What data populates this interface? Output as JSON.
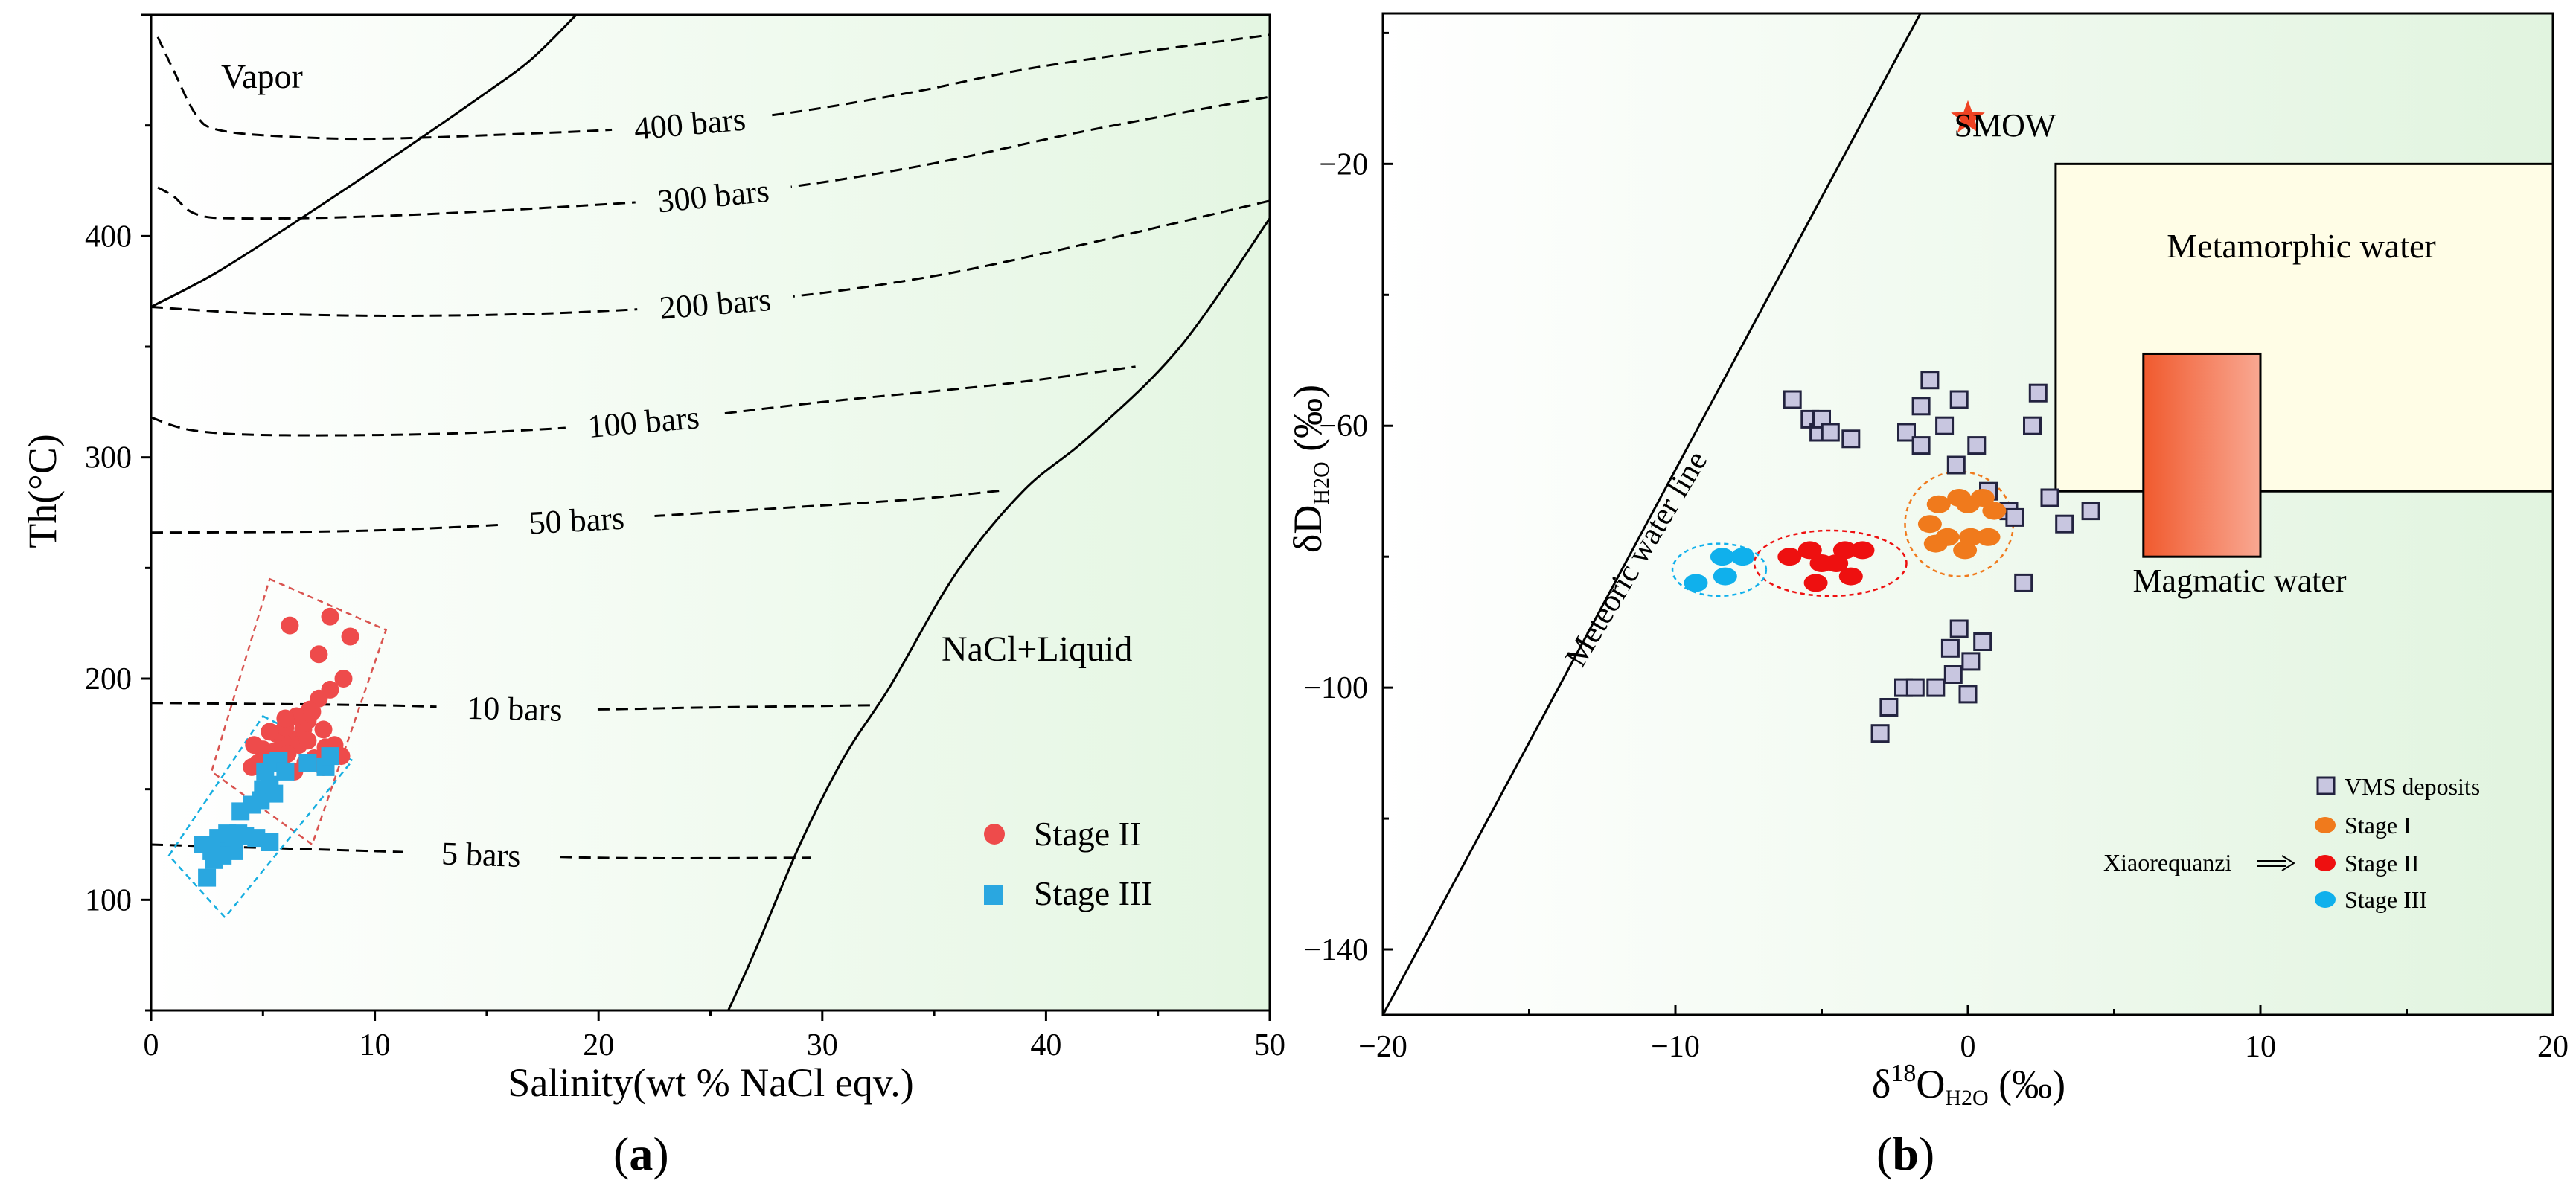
{
  "panels": {
    "a": {
      "label": "a"
    },
    "b": {
      "label": "b"
    }
  },
  "chart_data": [
    {
      "type": "scatter",
      "panel": "a",
      "xlabel": "Salinity(wt % NaCl eqv.)",
      "ylabel": "Th(°C)",
      "xlim": [
        0,
        50
      ],
      "ylim": [
        50,
        500
      ],
      "xticks": [
        0,
        10,
        20,
        30,
        40,
        50
      ],
      "yticks": [
        100,
        200,
        300,
        400
      ],
      "region_labels": {
        "vapor": "Vapor",
        "nacl_liquid": "NaCl+Liquid"
      },
      "isobars": [
        {
          "label": "400 bars",
          "points": [
            [
              0.3,
              490
            ],
            [
              1,
              475
            ],
            [
              2,
              455
            ],
            [
              3,
              448
            ],
            [
              6,
              445
            ],
            [
              10,
              444
            ],
            [
              16,
              446
            ],
            [
              22,
              449
            ],
            [
              28,
              455
            ],
            [
              34,
              465
            ],
            [
              40,
              477
            ],
            [
              50,
              491
            ]
          ]
        },
        {
          "label": "300 bars",
          "points": [
            [
              0.3,
              422
            ],
            [
              1,
              418
            ],
            [
              2,
              410
            ],
            [
              4,
              408
            ],
            [
              10,
              409
            ],
            [
              18,
              413
            ],
            [
              26,
              419
            ],
            [
              34,
              431
            ],
            [
              42,
              448
            ],
            [
              50,
              463
            ]
          ]
        },
        {
          "label": "200 bars",
          "points": [
            [
              0,
              368
            ],
            [
              5,
              365
            ],
            [
              12,
              364
            ],
            [
              20,
              366
            ],
            [
              28,
              372
            ],
            [
              35,
              382
            ],
            [
              42,
              397
            ],
            [
              50,
              416
            ]
          ]
        },
        {
          "label": "100 bars",
          "points": [
            [
              0,
              318
            ],
            [
              2,
              312
            ],
            [
              6,
              310
            ],
            [
              14,
              311
            ],
            [
              22,
              316
            ],
            [
              30,
              325
            ],
            [
              38,
              333
            ],
            [
              44,
              341
            ]
          ]
        },
        {
          "label": "50 bars",
          "points": [
            [
              0,
              266
            ],
            [
              10,
              267
            ],
            [
              20,
              272
            ],
            [
              28,
              277
            ],
            [
              34,
              281
            ],
            [
              38,
              285
            ]
          ]
        },
        {
          "label": "10 bars",
          "points": [
            [
              0,
              189
            ],
            [
              10,
              188
            ],
            [
              18,
              186
            ],
            [
              25,
              187
            ],
            [
              32.5,
              188
            ]
          ]
        },
        {
          "label": "5 bars",
          "points": [
            [
              0,
              125
            ],
            [
              10,
              122
            ],
            [
              20,
              119
            ],
            [
              29.5,
              119
            ]
          ]
        }
      ],
      "phase_boundaries": [
        {
          "name": "vapor-liquid",
          "points": [
            [
              0,
              368
            ],
            [
              3,
              384
            ],
            [
              7,
              410
            ],
            [
              11,
              437
            ],
            [
              15,
              465
            ],
            [
              17,
              480
            ],
            [
              19,
              500
            ]
          ]
        },
        {
          "name": "halite-saturation",
          "points": [
            [
              25.8,
              50
            ],
            [
              27,
              77
            ],
            [
              29,
              125
            ],
            [
              31,
              165
            ],
            [
              33,
              196
            ],
            [
              36,
              248
            ],
            [
              39,
              285
            ],
            [
              42,
              310
            ],
            [
              46,
              350
            ],
            [
              50,
              408
            ]
          ]
        }
      ],
      "fields": [
        {
          "series": "Stage II",
          "color": "#d9534f",
          "corners": [
            [
              5.3,
              245
            ],
            [
              10.5,
              222
            ],
            [
              7.2,
              125
            ],
            [
              2.7,
              158
            ]
          ]
        },
        {
          "series": "Stage III",
          "color": "#16aee0",
          "corners": [
            [
              5,
              183
            ],
            [
              9,
              163
            ],
            [
              3.3,
              92
            ],
            [
              0.8,
              120
            ]
          ]
        }
      ],
      "series": [
        {
          "name": "Stage II",
          "marker": "circle",
          "color": "#ee4b4b",
          "points": [
            [
              6.2,
              224
            ],
            [
              8.0,
              228
            ],
            [
              8.9,
              219
            ],
            [
              7.5,
              211
            ],
            [
              8.6,
              200
            ],
            [
              8.0,
              195
            ],
            [
              7.5,
              191
            ],
            [
              7.1,
              186
            ],
            [
              7.0,
              181
            ],
            [
              6.8,
              177
            ],
            [
              6.2,
              173
            ],
            [
              5.9,
              171
            ],
            [
              5.5,
              167
            ],
            [
              5.0,
              168
            ],
            [
              4.5,
              160
            ],
            [
              4.8,
              162
            ],
            [
              5.2,
              166
            ],
            [
              5.6,
              175
            ],
            [
              6.0,
              178
            ],
            [
              6.5,
              183
            ],
            [
              7.2,
              185
            ],
            [
              7.7,
              177
            ],
            [
              6.6,
              170
            ],
            [
              6.1,
              166
            ],
            [
              5.8,
              163
            ],
            [
              6.9,
              162
            ],
            [
              7.3,
              164
            ],
            [
              7.7,
              160
            ],
            [
              8.2,
              170
            ],
            [
              8.5,
              165
            ],
            [
              6.0,
              182
            ],
            [
              5.3,
              176
            ],
            [
              4.6,
              170
            ],
            [
              7.0,
              172
            ],
            [
              6.4,
              158
            ],
            [
              7.8,
              169
            ]
          ]
        },
        {
          "name": "Stage III",
          "marker": "square",
          "color": "#2aa7e0",
          "points": [
            [
              2.5,
              110
            ],
            [
              2.8,
              118
            ],
            [
              2.3,
              125
            ],
            [
              3.0,
              128
            ],
            [
              3.4,
              130
            ],
            [
              3.9,
              130
            ],
            [
              4.2,
              129
            ],
            [
              4.7,
              128
            ],
            [
              5.3,
              126
            ],
            [
              3.7,
              122
            ],
            [
              3.2,
              120
            ],
            [
              2.7,
              122
            ],
            [
              4.0,
              140
            ],
            [
              4.5,
              143
            ],
            [
              4.9,
              145
            ],
            [
              5.0,
              150
            ],
            [
              5.3,
              152
            ],
            [
              5.1,
              158
            ],
            [
              5.4,
              162
            ],
            [
              5.7,
              163
            ],
            [
              5.5,
              148
            ],
            [
              6.0,
              158
            ],
            [
              7.0,
              162
            ],
            [
              7.8,
              160
            ],
            [
              8.0,
              165
            ]
          ]
        }
      ],
      "legend": {
        "placement": "bottom-right",
        "entries": [
          "Stage II",
          "Stage III"
        ]
      }
    },
    {
      "type": "scatter",
      "panel": "b",
      "xlabel": {
        "prefix": "δ",
        "sup": "18",
        "main": "O",
        "sub": "H2O",
        "unit": "(‰)"
      },
      "ylabel": {
        "prefix": "δD",
        "sub": "H2O",
        "unit": "(‰)"
      },
      "xlim": [
        -20,
        20
      ],
      "ylim": [
        -150,
        3
      ],
      "xticks": [
        -20,
        -10,
        0,
        10,
        20
      ],
      "yticks": [
        -20,
        -60,
        -100,
        -140
      ],
      "smow": {
        "label": "SMOW",
        "point": [
          0,
          -13
        ]
      },
      "meteoric_water_line": {
        "label": "Meteoric water line",
        "points": [
          [
            -20,
            -150
          ],
          [
            -1.625,
            3
          ]
        ]
      },
      "metamorphic_box": {
        "label": "Metamorphic water",
        "x": [
          3,
          20
        ],
        "y": [
          -70,
          -20
        ]
      },
      "magmatic_box": {
        "label": "Magmatic water",
        "x": [
          6,
          10
        ],
        "y": [
          -80,
          -49
        ]
      },
      "series": [
        {
          "name": "VMS deposits",
          "marker": "square",
          "color": "#c8c6e0",
          "points": [
            [
              -6.0,
              -56
            ],
            [
              -5.4,
              -59
            ],
            [
              -5.1,
              -61
            ],
            [
              -5.0,
              -59
            ],
            [
              -4.7,
              -61
            ],
            [
              -4.0,
              -62
            ],
            [
              -2.1,
              -61
            ],
            [
              -1.6,
              -63
            ],
            [
              -1.6,
              -57
            ],
            [
              -1.3,
              -53
            ],
            [
              -0.8,
              -60
            ],
            [
              -0.3,
              -56
            ],
            [
              -0.4,
              -66
            ],
            [
              0.3,
              -63
            ],
            [
              0.7,
              -70
            ],
            [
              1.4,
              -73
            ],
            [
              1.6,
              -74
            ],
            [
              2.2,
              -60
            ],
            [
              2.4,
              -55
            ],
            [
              2.8,
              -71
            ],
            [
              3.3,
              -75
            ],
            [
              4.2,
              -73
            ],
            [
              1.9,
              -84
            ],
            [
              -3.0,
              -107
            ],
            [
              -2.7,
              -103
            ],
            [
              -2.2,
              -100
            ],
            [
              -1.8,
              -100
            ],
            [
              -1.1,
              -100
            ],
            [
              -0.6,
              -94
            ],
            [
              -0.5,
              -98
            ],
            [
              -0.3,
              -91
            ],
            [
              0.1,
              -96
            ],
            [
              0.5,
              -93
            ],
            [
              0,
              -101
            ]
          ]
        },
        {
          "name": "Stage I",
          "marker": "ellipse",
          "color": "#f07a1c",
          "points": [
            [
              -0.3,
              -71
            ],
            [
              0.5,
              -71
            ],
            [
              -1.0,
              -72
            ],
            [
              0,
              -72
            ],
            [
              0.9,
              -73
            ],
            [
              -1.3,
              -75
            ],
            [
              -0.7,
              -77
            ],
            [
              0.1,
              -77
            ],
            [
              0.7,
              -77
            ],
            [
              -0.1,
              -79
            ],
            [
              -1.1,
              -78
            ]
          ]
        },
        {
          "name": "Stage II",
          "marker": "ellipse",
          "color": "#ee1010",
          "points": [
            [
              -4.2,
              -79
            ],
            [
              -3.6,
              -79
            ],
            [
              -5.4,
              -79
            ],
            [
              -6.1,
              -80
            ],
            [
              -5.0,
              -81
            ],
            [
              -4.5,
              -81
            ],
            [
              -4.0,
              -83
            ],
            [
              -5.2,
              -84
            ]
          ]
        },
        {
          "name": "Stage III",
          "marker": "ellipse",
          "color": "#10b0ec",
          "points": [
            [
              -9.3,
              -84
            ],
            [
              -8.3,
              -83
            ],
            [
              -7.7,
              -80
            ],
            [
              -8.4,
              -80
            ]
          ]
        }
      ],
      "fields": [
        {
          "series": "Stage I",
          "color": "#f07a1c",
          "center": [
            -0.3,
            -75
          ],
          "rx": 1.85,
          "ry": 8
        },
        {
          "series": "Stage II",
          "color": "#ee1010",
          "center": [
            -4.7,
            -81
          ],
          "rx": 2.6,
          "ry": 5
        },
        {
          "series": "Stage III",
          "color": "#10b0ec",
          "center": [
            -8.5,
            -82
          ],
          "rx": 1.6,
          "ry": 4
        }
      ],
      "legend": {
        "placement": "bottom-right",
        "entries": [
          "VMS deposits",
          "Stage I",
          "Stage II",
          "Stage III"
        ],
        "group_label": "Xiaorequanzi"
      }
    }
  ]
}
